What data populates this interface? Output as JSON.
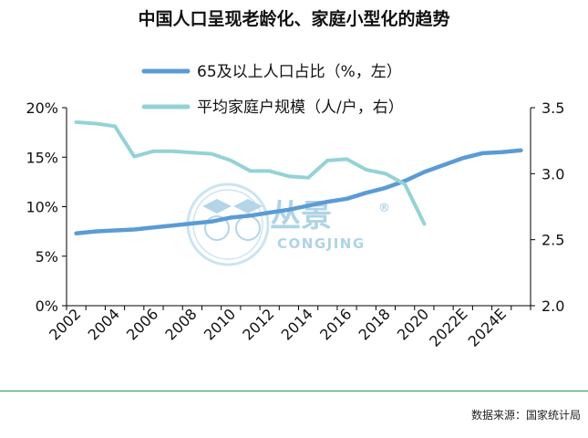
{
  "title": "中国人口呈现老龄化、家庭小型化的趋势",
  "source": "数据来源：国家统计局",
  "watermark": {
    "cn": "丛景",
    "en": "CONGJING",
    "reg": "®"
  },
  "colors": {
    "series1": "#5b9bd5",
    "series2": "#94d2d6",
    "axis": "#000000",
    "divider": "#1e9a5a"
  },
  "chart_data": {
    "type": "line",
    "title": "中国人口呈现老龄化、家庭小型化的趋势",
    "xlabel": "",
    "ylabel_left": "",
    "ylabel_right": "",
    "x": [
      "2002",
      "2003",
      "2004",
      "2005",
      "2006",
      "2007",
      "2008",
      "2009",
      "2010",
      "2011",
      "2012",
      "2013",
      "2014",
      "2015",
      "2016",
      "2017",
      "2018",
      "2019",
      "2020",
      "2021",
      "2022E",
      "2023E",
      "2024E",
      "2025E"
    ],
    "xtick_labels": [
      "2002",
      "2004",
      "2006",
      "2008",
      "2010",
      "2012",
      "2014",
      "2016",
      "2018",
      "2020",
      "2022E",
      "2024E"
    ],
    "ylim_left": [
      0,
      20
    ],
    "yticks_left": [
      "0%",
      "5%",
      "10%",
      "15%",
      "20%"
    ],
    "ylim_right": [
      2.0,
      3.5
    ],
    "yticks_right": [
      "2.0",
      "2.5",
      "3.0",
      "3.5"
    ],
    "legend_position": "top-center",
    "series": [
      {
        "name": "65及以上人口占比（%，左）",
        "axis": "left",
        "color": "#5b9bd5",
        "values": [
          7.3,
          7.5,
          7.6,
          7.7,
          7.9,
          8.1,
          8.3,
          8.5,
          8.9,
          9.1,
          9.4,
          9.7,
          10.1,
          10.5,
          10.8,
          11.4,
          11.9,
          12.6,
          13.5,
          14.2,
          14.9,
          15.4,
          15.5,
          15.7
        ]
      },
      {
        "name": "平均家庭户规模（人/户，右）",
        "axis": "right",
        "color": "#94d2d6",
        "values": [
          3.39,
          3.38,
          3.36,
          3.13,
          3.17,
          3.17,
          3.16,
          3.15,
          3.1,
          3.02,
          3.02,
          2.98,
          2.97,
          3.1,
          3.11,
          3.03,
          3.0,
          2.92,
          2.62,
          null,
          null,
          null,
          null,
          null
        ]
      }
    ]
  }
}
